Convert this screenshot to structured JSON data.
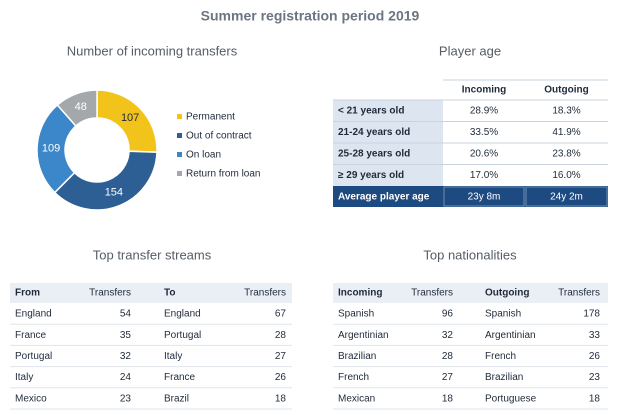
{
  "title": "Summer registration period 2019",
  "chart_data": {
    "type": "pie",
    "title": "Number of incoming transfers",
    "categories": [
      "Permanent",
      "Out of contract",
      "On loan",
      "Return from loan"
    ],
    "values": [
      107,
      154,
      109,
      48
    ],
    "colors": [
      "#f2c31b",
      "#2d5e94",
      "#3b87c9",
      "#a5a8ab"
    ]
  },
  "player_age": {
    "title": "Player age",
    "columns": [
      "Incoming",
      "Outgoing"
    ],
    "rows": [
      [
        "< 21 years old",
        "28.9%",
        "18.3%"
      ],
      [
        "21-24 years old",
        "33.5%",
        "41.9%"
      ],
      [
        "25-28 years old",
        "20.6%",
        "23.8%"
      ],
      [
        "≥ 29 years old",
        "17.0%",
        "16.0%"
      ]
    ],
    "average": [
      "Average player age",
      "23y 8m",
      "24y 2m"
    ]
  },
  "transfer_streams": {
    "title": "Top transfer streams",
    "columns": [
      "From",
      "Transfers",
      "To",
      "Transfers"
    ],
    "rows": [
      [
        "England",
        54,
        "England",
        67
      ],
      [
        "France",
        35,
        "Portugal",
        28
      ],
      [
        "Portugal",
        32,
        "Italy",
        27
      ],
      [
        "Italy",
        24,
        "France",
        26
      ],
      [
        "Mexico",
        23,
        "Brazil",
        18
      ]
    ]
  },
  "nationalities": {
    "title": "Top nationalities",
    "columns": [
      "Incoming",
      "Transfers",
      "Outgoing",
      "Transfers"
    ],
    "rows": [
      [
        "Spanish",
        96,
        "Spanish",
        178
      ],
      [
        "Argentinian",
        32,
        "Argentinian",
        33
      ],
      [
        "Brazilian",
        28,
        "French",
        26
      ],
      [
        "French",
        27,
        "Brazilian",
        23
      ],
      [
        "Mexican",
        18,
        "Portuguese",
        18
      ]
    ]
  }
}
